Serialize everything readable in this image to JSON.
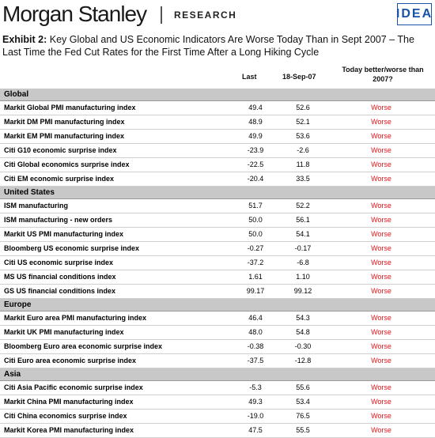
{
  "header": {
    "brand": "Morgan Stanley",
    "section": "RESEARCH",
    "badge": "IDEA"
  },
  "exhibit": {
    "label": "Exhibit 2:",
    "title": "Key Global and US Economic Indicators Are Worse Today Than in Sept 2007 – The Last Time the Fed Cut Rates for the First Time After a Long Hiking Cycle"
  },
  "columns": {
    "last": "Last",
    "sep": "18-Sep-07",
    "today": "Today better/worse than 2007?"
  },
  "sections": [
    {
      "name": "Global",
      "rows": [
        {
          "name": "Markit Global PMI manufacturing index",
          "last": "49.4",
          "sep": "52.6",
          "status": "Worse"
        },
        {
          "name": "Markit DM PMI manufacturing index",
          "last": "48.9",
          "sep": "52.1",
          "status": "Worse"
        },
        {
          "name": "Markit EM PMI manufacturing index",
          "last": "49.9",
          "sep": "53.6",
          "status": "Worse"
        },
        {
          "name": "Citi G10 economic surprise index",
          "last": "-23.9",
          "sep": "-2.6",
          "status": "Worse"
        },
        {
          "name": "Citi Global economics surprise index",
          "last": "-22.5",
          "sep": "11.8",
          "status": "Worse"
        },
        {
          "name": "Citi EM economic surprise index",
          "last": "-20.4",
          "sep": "33.5",
          "status": "Worse"
        }
      ]
    },
    {
      "name": "United States",
      "rows": [
        {
          "name": "ISM manufacturing",
          "last": "51.7",
          "sep": "52.2",
          "status": "Worse"
        },
        {
          "name": "ISM manufacturing - new orders",
          "last": "50.0",
          "sep": "56.1",
          "status": "Worse"
        },
        {
          "name": "Markit US PMI manufacturing index",
          "last": "50.0",
          "sep": "54.1",
          "status": "Worse"
        },
        {
          "name": "Bloomberg US economic surprise index",
          "last": "-0.27",
          "sep": "-0.17",
          "status": "Worse"
        },
        {
          "name": "Citi US economic surprise index",
          "last": "-37.2",
          "sep": "-6.8",
          "status": "Worse"
        },
        {
          "name": "MS US financial conditions index",
          "last": "1.61",
          "sep": "1.10",
          "status": "Worse"
        },
        {
          "name": "GS US financial conditions index",
          "last": "99.17",
          "sep": "99.12",
          "status": "Worse"
        }
      ]
    },
    {
      "name": "Europe",
      "rows": [
        {
          "name": "Markit Euro area PMI manufacturing index",
          "last": "46.4",
          "sep": "54.3",
          "status": "Worse"
        },
        {
          "name": "Markit UK PMI manufacturing index",
          "last": "48.0",
          "sep": "54.8",
          "status": "Worse"
        },
        {
          "name": "Bloomberg Euro area economic surprise index",
          "last": "-0.38",
          "sep": "-0.30",
          "status": "Worse"
        },
        {
          "name": "Citi Euro area economic surprise index",
          "last": "-37.5",
          "sep": "-12.8",
          "status": "Worse"
        }
      ]
    },
    {
      "name": "Asia",
      "rows": [
        {
          "name": "Citi Asia Pacific economic surprise index",
          "last": "-5.3",
          "sep": "55.6",
          "status": "Worse"
        },
        {
          "name": "Markit China PMI manufacturing index",
          "last": "49.3",
          "sep": "53.4",
          "status": "Worse"
        },
        {
          "name": "Citi China economics surprise index",
          "last": "-19.0",
          "sep": "76.5",
          "status": "Worse"
        },
        {
          "name": "Markit Korea PMI manufacturing index",
          "last": "47.5",
          "sep": "55.5",
          "status": "Worse"
        }
      ]
    }
  ],
  "colors": {
    "worse": "#e8141b",
    "section_bg": "#c8c8c8",
    "badge": "#1a52a8"
  }
}
